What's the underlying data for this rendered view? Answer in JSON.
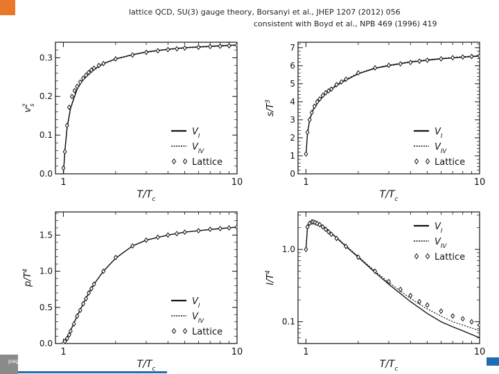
{
  "captions": {
    "line1": "lattice QCD, SU(3) gauge theory, Borsanyi et al., JHEP 1207 (2012) 056",
    "line2": "consistent with Boyd et al., NPB 469 (1996) 419"
  },
  "footer": {
    "page_label": "page"
  },
  "colors": {
    "accent": "#e8782a",
    "footer_blue": "#1f6db0"
  },
  "chart_data": [
    {
      "type": "line",
      "xlabel": "T/T",
      "xlabel_sub": "c",
      "ylabel": "v",
      "ylabel_sup": "2",
      "ylabel_sub": "s",
      "xscale": "log",
      "xlim": [
        0.9,
        10
      ],
      "ylim": [
        0,
        0.34
      ],
      "xticks": [
        {
          "v": 1,
          "label": "1"
        },
        {
          "v": 10,
          "label": "10"
        }
      ],
      "yticks": [
        {
          "v": 0.0,
          "label": "0.0"
        },
        {
          "v": 0.1,
          "label": "0.1"
        },
        {
          "v": 0.2,
          "label": "0.2"
        },
        {
          "v": 0.3,
          "label": "0.3"
        }
      ],
      "legend_position": "lower-right",
      "legend": [
        {
          "style": "solid",
          "label": "V",
          "label_sub": "I"
        },
        {
          "style": "dotted",
          "label": "V",
          "label_sub": "IV"
        },
        {
          "style": "diamond",
          "label": "Lattice"
        }
      ],
      "series": [
        {
          "name": "V_I",
          "style": "solid",
          "x": [
            1.0,
            1.02,
            1.05,
            1.1,
            1.2,
            1.3,
            1.5,
            1.7,
            2.0,
            2.5,
            3.0,
            4.0,
            5.0,
            6.0,
            8.0,
            10.0
          ],
          "y": [
            0.0,
            0.06,
            0.12,
            0.17,
            0.22,
            0.245,
            0.27,
            0.285,
            0.297,
            0.308,
            0.315,
            0.322,
            0.326,
            0.328,
            0.331,
            0.333
          ]
        },
        {
          "name": "V_IV",
          "style": "dotted",
          "x": [
            1.0,
            1.02,
            1.05,
            1.1,
            1.2,
            1.3,
            1.5,
            1.7,
            2.0,
            2.5,
            3.0,
            4.0,
            5.0,
            6.0,
            8.0,
            10.0
          ],
          "y": [
            0.0,
            0.055,
            0.115,
            0.168,
            0.218,
            0.243,
            0.268,
            0.284,
            0.296,
            0.307,
            0.314,
            0.321,
            0.325,
            0.327,
            0.33,
            0.332
          ]
        },
        {
          "name": "Lattice",
          "style": "diamond",
          "x": [
            1.0,
            1.02,
            1.05,
            1.08,
            1.12,
            1.16,
            1.2,
            1.25,
            1.3,
            1.35,
            1.4,
            1.45,
            1.5,
            1.6,
            1.7,
            2.0,
            2.5,
            3.0,
            3.5,
            4.0,
            4.5,
            5.0,
            6.0,
            7.0,
            8.0,
            9.0,
            10.0
          ],
          "y": [
            0.015,
            0.057,
            0.125,
            0.172,
            0.2,
            0.215,
            0.226,
            0.237,
            0.247,
            0.255,
            0.262,
            0.268,
            0.273,
            0.28,
            0.285,
            0.297,
            0.307,
            0.314,
            0.318,
            0.321,
            0.323,
            0.325,
            0.327,
            0.329,
            0.33,
            0.331,
            0.332
          ]
        }
      ]
    },
    {
      "type": "line",
      "xlabel": "T/T",
      "xlabel_sub": "c",
      "ylabel": "s/T",
      "ylabel_sup": "3",
      "xscale": "log",
      "xlim": [
        0.9,
        10
      ],
      "ylim": [
        0,
        7.3
      ],
      "xticks": [
        {
          "v": 1,
          "label": "1"
        },
        {
          "v": 10,
          "label": "10"
        }
      ],
      "yticks": [
        {
          "v": 0,
          "label": "0"
        },
        {
          "v": 1,
          "label": "1"
        },
        {
          "v": 2,
          "label": "2"
        },
        {
          "v": 3,
          "label": "3"
        },
        {
          "v": 4,
          "label": "4"
        },
        {
          "v": 5,
          "label": "5"
        },
        {
          "v": 6,
          "label": "6"
        },
        {
          "v": 7,
          "label": "7"
        }
      ],
      "legend_position": "lower-right",
      "legend": [
        {
          "style": "solid",
          "label": "V",
          "label_sub": "I"
        },
        {
          "style": "dotted",
          "label": "V",
          "label_sub": "IV"
        },
        {
          "style": "diamond",
          "label": "Lattice"
        }
      ],
      "series": [
        {
          "name": "V_I",
          "style": "solid",
          "x": [
            1.0,
            1.02,
            1.05,
            1.1,
            1.2,
            1.3,
            1.5,
            1.7,
            2.0,
            2.5,
            3.0,
            4.0,
            5.0,
            6.0,
            8.0,
            10.0
          ],
          "y": [
            1.05,
            2.2,
            3.0,
            3.55,
            4.1,
            4.45,
            4.9,
            5.2,
            5.55,
            5.85,
            6.0,
            6.2,
            6.3,
            6.38,
            6.47,
            6.53
          ]
        },
        {
          "name": "V_IV",
          "style": "dotted",
          "x": [
            1.0,
            1.02,
            1.05,
            1.1,
            1.2,
            1.3,
            1.5,
            1.7,
            2.0,
            2.5,
            3.0,
            4.0,
            5.0,
            6.0,
            8.0,
            10.0
          ],
          "y": [
            1.05,
            2.25,
            3.05,
            3.6,
            4.15,
            4.5,
            4.95,
            5.25,
            5.58,
            5.88,
            6.03,
            6.23,
            6.33,
            6.41,
            6.5,
            6.56
          ]
        },
        {
          "name": "Lattice",
          "style": "diamond",
          "x": [
            1.0,
            1.02,
            1.05,
            1.08,
            1.12,
            1.16,
            1.2,
            1.25,
            1.3,
            1.35,
            1.4,
            1.5,
            1.6,
            1.7,
            2.0,
            2.5,
            3.0,
            3.5,
            4.0,
            4.5,
            5.0,
            6.0,
            7.0,
            8.0,
            9.0,
            10.0
          ],
          "y": [
            1.1,
            2.3,
            3.0,
            3.4,
            3.75,
            4.0,
            4.15,
            4.35,
            4.5,
            4.6,
            4.7,
            4.95,
            5.1,
            5.25,
            5.6,
            5.88,
            6.02,
            6.1,
            6.18,
            6.25,
            6.3,
            6.38,
            6.44,
            6.48,
            6.51,
            6.53
          ]
        }
      ]
    },
    {
      "type": "line",
      "xlabel": "T/T",
      "xlabel_sub": "c",
      "ylabel": "p/T",
      "ylabel_sup": "4",
      "xscale": "log",
      "xlim": [
        0.9,
        10
      ],
      "ylim": [
        0,
        1.82
      ],
      "xticks": [
        {
          "v": 1,
          "label": "1"
        },
        {
          "v": 10,
          "label": "10"
        }
      ],
      "yticks": [
        {
          "v": 0.0,
          "label": "0.0"
        },
        {
          "v": 0.5,
          "label": "0.5"
        },
        {
          "v": 1.0,
          "label": "1.0"
        },
        {
          "v": 1.5,
          "label": "1.5"
        }
      ],
      "legend_position": "lower-right",
      "legend": [
        {
          "style": "solid",
          "label": "V",
          "label_sub": "I"
        },
        {
          "style": "dotted",
          "label": "V",
          "label_sub": "IV"
        },
        {
          "style": "diamond",
          "label": "Lattice"
        }
      ],
      "series": [
        {
          "name": "V_I",
          "style": "solid",
          "x": [
            1.0,
            1.05,
            1.1,
            1.2,
            1.3,
            1.4,
            1.5,
            1.7,
            2.0,
            2.5,
            3.0,
            4.0,
            5.0,
            6.0,
            8.0,
            10.0
          ],
          "y": [
            0.0,
            0.08,
            0.18,
            0.38,
            0.55,
            0.7,
            0.82,
            1.0,
            1.18,
            1.35,
            1.43,
            1.5,
            1.54,
            1.56,
            1.59,
            1.61
          ]
        },
        {
          "name": "V_IV",
          "style": "dotted",
          "x": [
            1.0,
            1.05,
            1.1,
            1.2,
            1.3,
            1.4,
            1.5,
            1.7,
            2.0,
            2.5,
            3.0,
            4.0,
            5.0,
            6.0,
            8.0,
            10.0
          ],
          "y": [
            0.0,
            0.08,
            0.18,
            0.38,
            0.55,
            0.7,
            0.82,
            1.0,
            1.18,
            1.35,
            1.43,
            1.5,
            1.54,
            1.56,
            1.59,
            1.61
          ]
        },
        {
          "name": "Lattice",
          "style": "diamond",
          "x": [
            1.0,
            1.02,
            1.05,
            1.08,
            1.1,
            1.15,
            1.2,
            1.25,
            1.3,
            1.35,
            1.4,
            1.45,
            1.5,
            1.7,
            2.0,
            2.5,
            3.0,
            3.5,
            4.0,
            4.5,
            5.0,
            6.0,
            7.0,
            8.0,
            9.0,
            10.0
          ],
          "y": [
            0.0,
            0.03,
            0.07,
            0.12,
            0.17,
            0.27,
            0.38,
            0.46,
            0.55,
            0.62,
            0.7,
            0.76,
            0.82,
            1.0,
            1.19,
            1.35,
            1.43,
            1.47,
            1.5,
            1.52,
            1.54,
            1.56,
            1.58,
            1.59,
            1.6,
            1.61
          ]
        }
      ]
    },
    {
      "type": "line",
      "xlabel": "T/T",
      "xlabel_sub": "c",
      "ylabel": "I/T",
      "ylabel_sup": "4",
      "xscale": "log",
      "yscale": "log",
      "xlim": [
        0.9,
        10
      ],
      "ylim": [
        0.05,
        3.3
      ],
      "xticks": [
        {
          "v": 1,
          "label": "1"
        },
        {
          "v": 10,
          "label": "10"
        }
      ],
      "yticks": [
        {
          "v": 0.1,
          "label": "0.1"
        },
        {
          "v": 1.0,
          "label": "1.0"
        }
      ],
      "legend_position": "upper-right",
      "legend": [
        {
          "style": "solid",
          "label": "V",
          "label_sub": "I"
        },
        {
          "style": "dotted",
          "label": "V",
          "label_sub": "IV"
        },
        {
          "style": "diamond",
          "label": "Lattice"
        }
      ],
      "series": [
        {
          "name": "V_I",
          "style": "solid",
          "x": [
            1.0,
            1.02,
            1.05,
            1.1,
            1.2,
            1.3,
            1.5,
            1.7,
            2.0,
            2.5,
            3.0,
            4.0,
            5.0,
            6.0,
            7.0,
            8.0,
            10.0
          ],
          "y": [
            1.0,
            2.0,
            2.35,
            2.4,
            2.2,
            1.95,
            1.45,
            1.1,
            0.78,
            0.48,
            0.33,
            0.19,
            0.13,
            0.1,
            0.085,
            0.075,
            0.06
          ]
        },
        {
          "name": "V_IV",
          "style": "dotted",
          "x": [
            1.0,
            1.02,
            1.05,
            1.1,
            1.2,
            1.3,
            1.5,
            1.7,
            2.0,
            2.5,
            3.0,
            4.0,
            5.0,
            6.0,
            7.0,
            8.0,
            10.0
          ],
          "y": [
            1.0,
            2.05,
            2.38,
            2.42,
            2.22,
            1.97,
            1.47,
            1.12,
            0.8,
            0.5,
            0.35,
            0.21,
            0.15,
            0.12,
            0.1,
            0.09,
            0.075
          ]
        },
        {
          "name": "Lattice",
          "style": "diamond",
          "x": [
            1.0,
            1.02,
            1.05,
            1.08,
            1.1,
            1.13,
            1.16,
            1.2,
            1.25,
            1.3,
            1.35,
            1.4,
            1.5,
            1.7,
            2.0,
            2.5,
            3.0,
            3.5,
            4.0,
            4.5,
            5.0,
            6.0,
            7.0,
            8.0,
            9.0,
            10.0
          ],
          "y": [
            1.0,
            2.05,
            2.3,
            2.4,
            2.4,
            2.35,
            2.28,
            2.2,
            2.05,
            1.9,
            1.75,
            1.62,
            1.42,
            1.1,
            0.78,
            0.5,
            0.36,
            0.28,
            0.23,
            0.19,
            0.17,
            0.14,
            0.12,
            0.11,
            0.1,
            0.09
          ]
        }
      ]
    }
  ]
}
